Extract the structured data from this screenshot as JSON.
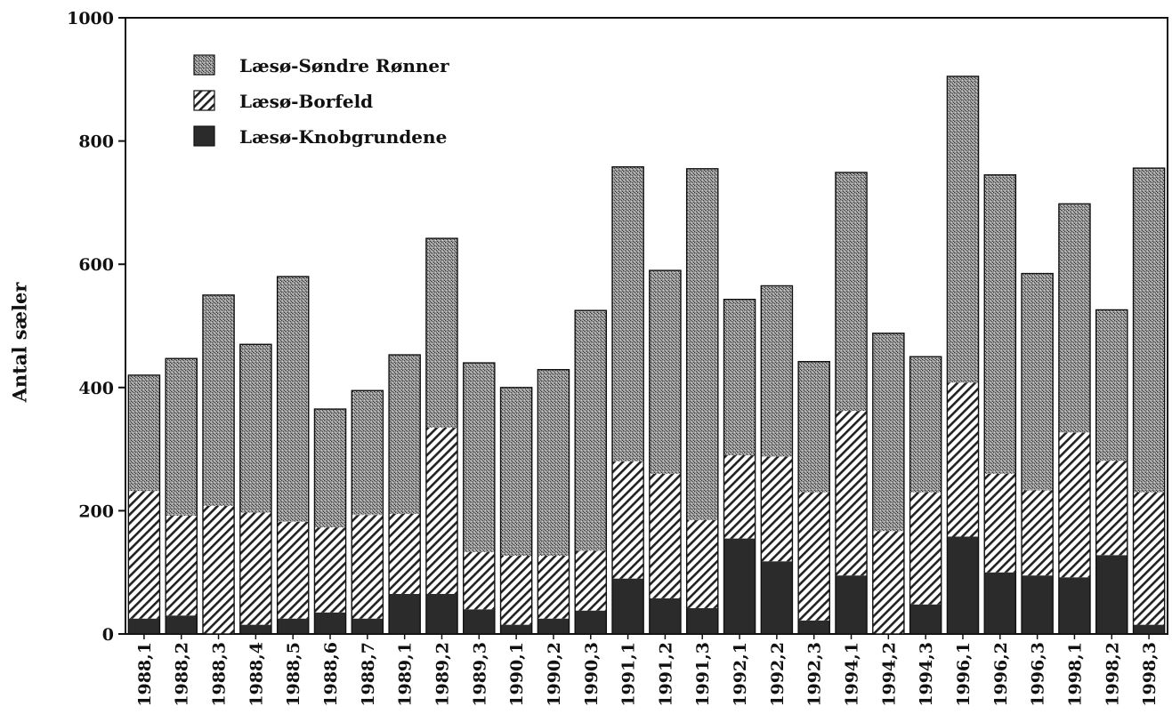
{
  "chart_data": {
    "type": "bar",
    "stacked": true,
    "categories": [
      "1988,1",
      "1988,2",
      "1988,3",
      "1988,4",
      "1988,5",
      "1988,6",
      "1988,7",
      "1989,1",
      "1989,2",
      "1989,3",
      "1990,1",
      "1990,2",
      "1990,3",
      "1991,1",
      "1991,2",
      "1991,3",
      "1992,1",
      "1992,2",
      "1992,3",
      "1994,1",
      "1994,2",
      "1994,3",
      "1996,1",
      "1996,2",
      "1996,3",
      "1998,1",
      "1998,2",
      "1998,3"
    ],
    "series": [
      {
        "name": "Læsø-Knobgrundene",
        "pattern": "solid",
        "color": "#2b2b2b",
        "values": [
          25,
          30,
          0,
          15,
          25,
          35,
          25,
          65,
          65,
          40,
          15,
          25,
          38,
          90,
          58,
          42,
          155,
          118,
          22,
          95,
          0,
          48,
          158,
          100,
          95,
          92,
          128,
          15
        ]
      },
      {
        "name": "Læsø-Borfeld",
        "pattern": "hatch",
        "color": "#555555",
        "values": [
          207,
          162,
          208,
          182,
          157,
          138,
          168,
          130,
          270,
          93,
          112,
          102,
          97,
          190,
          202,
          143,
          135,
          170,
          208,
          267,
          167,
          182,
          250,
          160,
          138,
          235,
          153,
          215
        ]
      },
      {
        "name": "Læsø-Søndre Rønner",
        "pattern": "stipple",
        "color": "#8a8a8a",
        "values": [
          188,
          255,
          342,
          273,
          398,
          192,
          202,
          258,
          307,
          307,
          273,
          302,
          390,
          478,
          330,
          570,
          253,
          277,
          212,
          387,
          321,
          220,
          497,
          485,
          352,
          371,
          245,
          526
        ]
      }
    ],
    "xlabel": "",
    "ylabel": "Antal sæler",
    "ylim": [
      0,
      1000
    ],
    "yticks": [
      0,
      200,
      400,
      600,
      800,
      1000
    ],
    "legend_position": "top-left",
    "grid": false
  }
}
